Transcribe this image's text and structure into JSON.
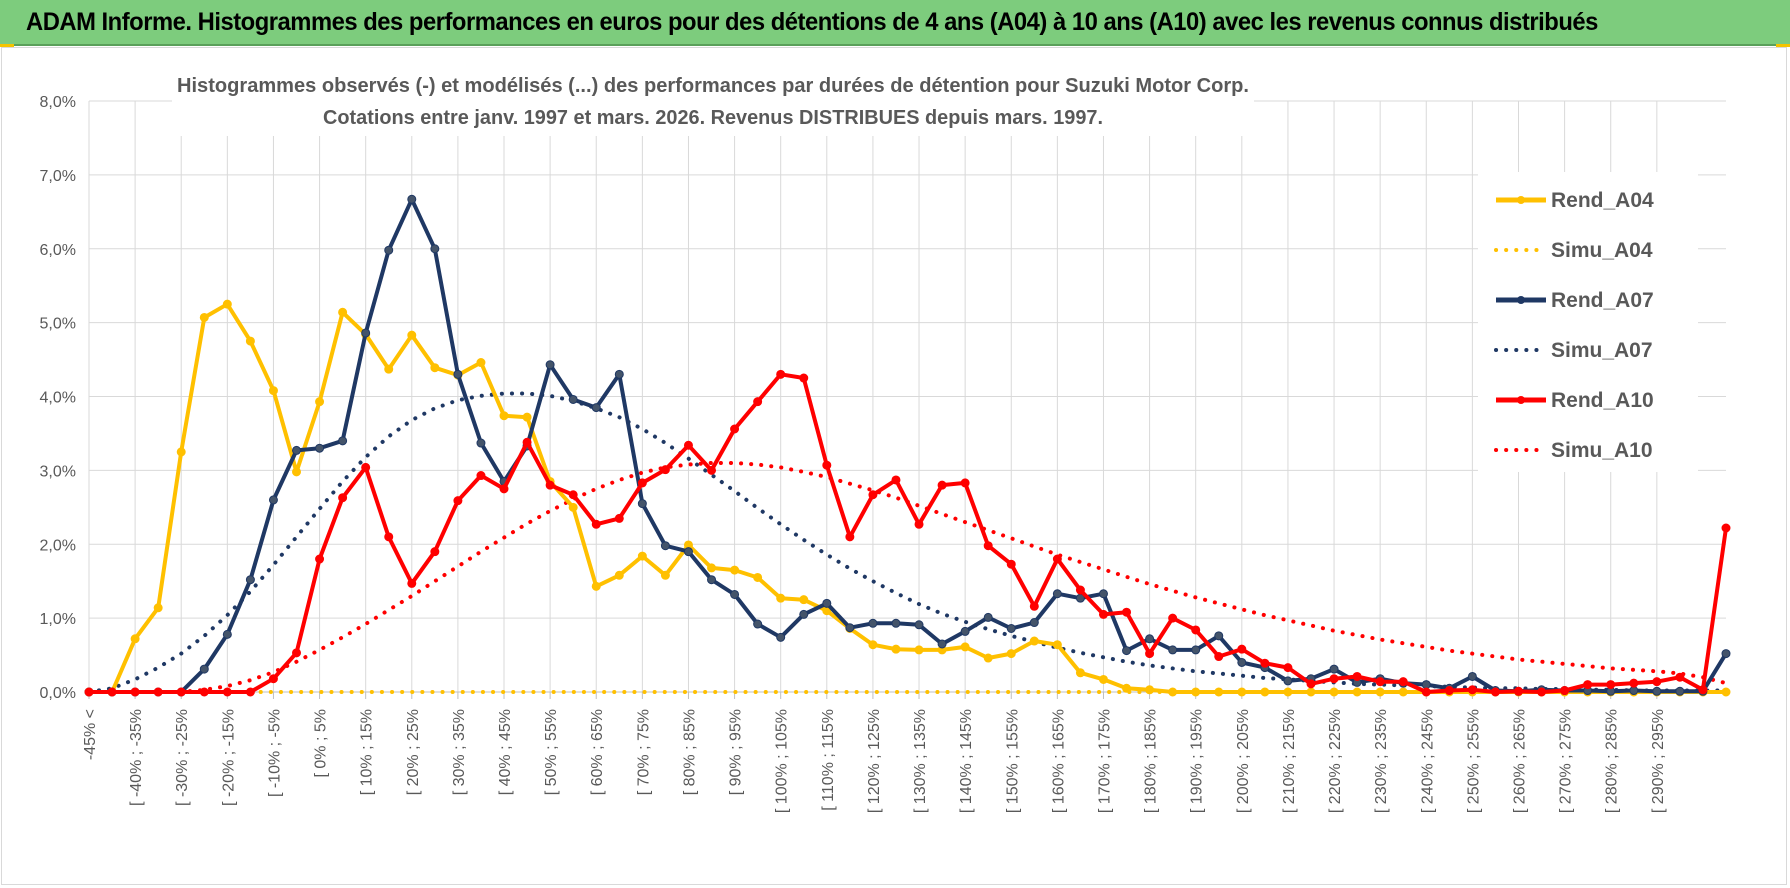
{
  "banner": {
    "title": "ADAM Informe. Histogrammes des performances en euros pour des détentions de 4 ans (A04) à 10 ans (A10) avec les revenus connus distribués",
    "color": "#7dcc7d"
  },
  "chart_data": {
    "type": "line",
    "title_line1": "Histogrammes observés (-) et modélisés (...) des performances par durées de détention pour Suzuki Motor Corp.",
    "title_line2": "Cotations entre janv. 1997 et mars. 2026.  Revenus DISTRIBUES depuis mars. 1997.",
    "ylim": [
      0,
      8
    ],
    "y_ticks": [
      "0,0%",
      "1,0%",
      "2,0%",
      "3,0%",
      "4,0%",
      "5,0%",
      "6,0%",
      "7,0%",
      "8,0%"
    ],
    "y_unit": "%",
    "grid": true,
    "legend_position": "right",
    "x_labels": [
      "-45% <",
      "[ -40% ; -35%",
      "[ -30% ; -25%",
      "[ -20% ; -15%",
      "[ -10% ; -5%",
      "[ 0% ; 5%",
      "[ 10% ; 15%",
      "[ 20% ; 25%",
      "[ 30% ; 35%",
      "[ 40% ; 45%",
      "[ 50% ; 55%",
      "[ 60% ; 65%",
      "[ 70% ; 75%",
      "[ 80% ; 85%",
      "[ 90% ; 95%",
      "[ 100% ; 105%",
      "[ 110% ; 115%",
      "[ 120% ; 125%",
      "[ 130% ; 135%",
      "[ 140% ; 145%",
      "[ 150% ; 155%",
      "[ 160% ; 165%",
      "[ 170% ; 175%",
      "[ 180% ; 185%",
      "[ 190% ; 195%",
      "[ 200% ; 205%",
      "[ 210% ; 215%",
      "[ 220% ; 225%",
      "[ 230% ; 235%",
      "[ 240% ; 245%",
      "[ 250% ; 255%",
      "[ 260% ; 265%",
      "[ 270% ; 275%",
      "[ 280% ; 285%",
      "[ 290% ; 295%"
    ],
    "series": [
      {
        "name": "Rend_A04",
        "color": "#ffc000",
        "style": "solid",
        "markers": true,
        "values": [
          0,
          0,
          0.72,
          1.14,
          3.25,
          5.07,
          5.25,
          4.75,
          4.08,
          2.98,
          3.93,
          5.14,
          4.84,
          4.37,
          4.83,
          4.39,
          4.29,
          4.46,
          3.74,
          3.72,
          2.85,
          2.5,
          1.43,
          1.58,
          1.84,
          1.58,
          1.99,
          1.68,
          1.65,
          1.55,
          1.27,
          1.25,
          1.1,
          0.86,
          0.64,
          0.58,
          0.57,
          0.57,
          0.61,
          0.46,
          0.52,
          0.69,
          0.64,
          0.26,
          0.17,
          0.05,
          0.03,
          0,
          0,
          0,
          0,
          0,
          0,
          0,
          0,
          0,
          0,
          0,
          0,
          0,
          0,
          0,
          0,
          0,
          0,
          0,
          0,
          0,
          0,
          0,
          0,
          0
        ]
      },
      {
        "name": "Simu_A04",
        "color": "#ffc000",
        "style": "dotted",
        "markers": false,
        "values": [
          0,
          0,
          0,
          0,
          0,
          0,
          0,
          0,
          0,
          0,
          0,
          0,
          0,
          0,
          0,
          0,
          0,
          0,
          0,
          0,
          0,
          0,
          0,
          0,
          0,
          0,
          0,
          0,
          0,
          0,
          0,
          0,
          0,
          0,
          0,
          0,
          0,
          0,
          0,
          0,
          0,
          0,
          0,
          0,
          0,
          0,
          0,
          0,
          0,
          0,
          0,
          0,
          0,
          0,
          0,
          0,
          0,
          0,
          0,
          0,
          0,
          0,
          0,
          0,
          0,
          0,
          0,
          0,
          0,
          0,
          0,
          0
        ]
      },
      {
        "name": "Rend_A07",
        "color": "#1f3864",
        "style": "solid",
        "markers": true,
        "values": [
          0,
          0,
          0,
          0,
          0,
          0.31,
          0.78,
          1.52,
          2.6,
          3.27,
          3.3,
          3.4,
          4.86,
          5.98,
          6.67,
          6.0,
          4.3,
          3.37,
          2.85,
          3.33,
          4.43,
          3.96,
          3.85,
          4.3,
          2.55,
          1.98,
          1.9,
          1.52,
          1.32,
          0.92,
          0.74,
          1.05,
          1.2,
          0.87,
          0.93,
          0.93,
          0.91,
          0.65,
          0.82,
          1.01,
          0.86,
          0.94,
          1.33,
          1.27,
          1.33,
          0.56,
          0.72,
          0.57,
          0.57,
          0.76,
          0.4,
          0.33,
          0.15,
          0.18,
          0.31,
          0.13,
          0.18,
          0.12,
          0.1,
          0.05,
          0.21,
          0.02,
          0.01,
          0.03,
          0.02,
          0.02,
          0.01,
          0.02,
          0.01,
          0.01,
          0.01,
          0.52
        ]
      },
      {
        "name": "Simu_A07",
        "color": "#1f3864",
        "style": "dotted",
        "markers": false,
        "values": [
          0,
          0.05,
          0.17,
          0.33,
          0.52,
          0.76,
          1.04,
          1.36,
          1.72,
          2.1,
          2.48,
          2.85,
          3.18,
          3.46,
          3.68,
          3.84,
          3.95,
          4.01,
          4.04,
          4.04,
          4.01,
          3.94,
          3.84,
          3.72,
          3.56,
          3.37,
          3.16,
          2.94,
          2.72,
          2.49,
          2.27,
          2.06,
          1.86,
          1.67,
          1.5,
          1.34,
          1.19,
          1.06,
          0.95,
          0.85,
          0.76,
          0.68,
          0.6,
          0.53,
          0.47,
          0.41,
          0.36,
          0.32,
          0.28,
          0.25,
          0.22,
          0.19,
          0.17,
          0.15,
          0.13,
          0.11,
          0.1,
          0.09,
          0.08,
          0.07,
          0.06,
          0.05,
          0.05,
          0.04,
          0.04,
          0.03,
          0.03,
          0.02,
          0.02,
          0.02,
          0.02,
          0.02
        ]
      },
      {
        "name": "Rend_A10",
        "color": "#ff0000",
        "style": "solid",
        "markers": true,
        "values": [
          0,
          0,
          0,
          0,
          0,
          0,
          0,
          0,
          0.18,
          0.53,
          1.8,
          2.63,
          3.04,
          2.1,
          1.47,
          1.9,
          2.59,
          2.93,
          2.75,
          3.38,
          2.8,
          2.67,
          2.27,
          2.35,
          2.83,
          3.01,
          3.34,
          3.0,
          3.56,
          3.93,
          4.3,
          4.25,
          3.07,
          2.1,
          2.67,
          2.87,
          2.27,
          2.8,
          2.83,
          1.98,
          1.73,
          1.16,
          1.8,
          1.38,
          1.05,
          1.08,
          0.52,
          1.0,
          0.84,
          0.48,
          0.58,
          0.39,
          0.33,
          0.11,
          0.18,
          0.21,
          0.14,
          0.14,
          0.0,
          0.02,
          0.03,
          0.0,
          0.01,
          0.0,
          0.02,
          0.1,
          0.1,
          0.12,
          0.14,
          0.2,
          0.03,
          2.22
        ]
      },
      {
        "name": "Simu_A10",
        "color": "#ff0000",
        "style": "dotted",
        "markers": false,
        "values": [
          0,
          0,
          0,
          0,
          0,
          0.03,
          0.08,
          0.16,
          0.27,
          0.41,
          0.57,
          0.74,
          0.92,
          1.11,
          1.3,
          1.5,
          1.7,
          1.9,
          2.09,
          2.28,
          2.45,
          2.61,
          2.75,
          2.87,
          2.97,
          3.04,
          3.08,
          3.1,
          3.1,
          3.08,
          3.04,
          2.98,
          2.91,
          2.82,
          2.73,
          2.63,
          2.52,
          2.41,
          2.3,
          2.19,
          2.08,
          1.97,
          1.86,
          1.76,
          1.66,
          1.56,
          1.46,
          1.37,
          1.28,
          1.2,
          1.12,
          1.04,
          0.97,
          0.9,
          0.83,
          0.77,
          0.71,
          0.66,
          0.61,
          0.56,
          0.52,
          0.48,
          0.44,
          0.41,
          0.38,
          0.35,
          0.32,
          0.3,
          0.28,
          0.25,
          0.2,
          0.12
        ]
      }
    ]
  }
}
